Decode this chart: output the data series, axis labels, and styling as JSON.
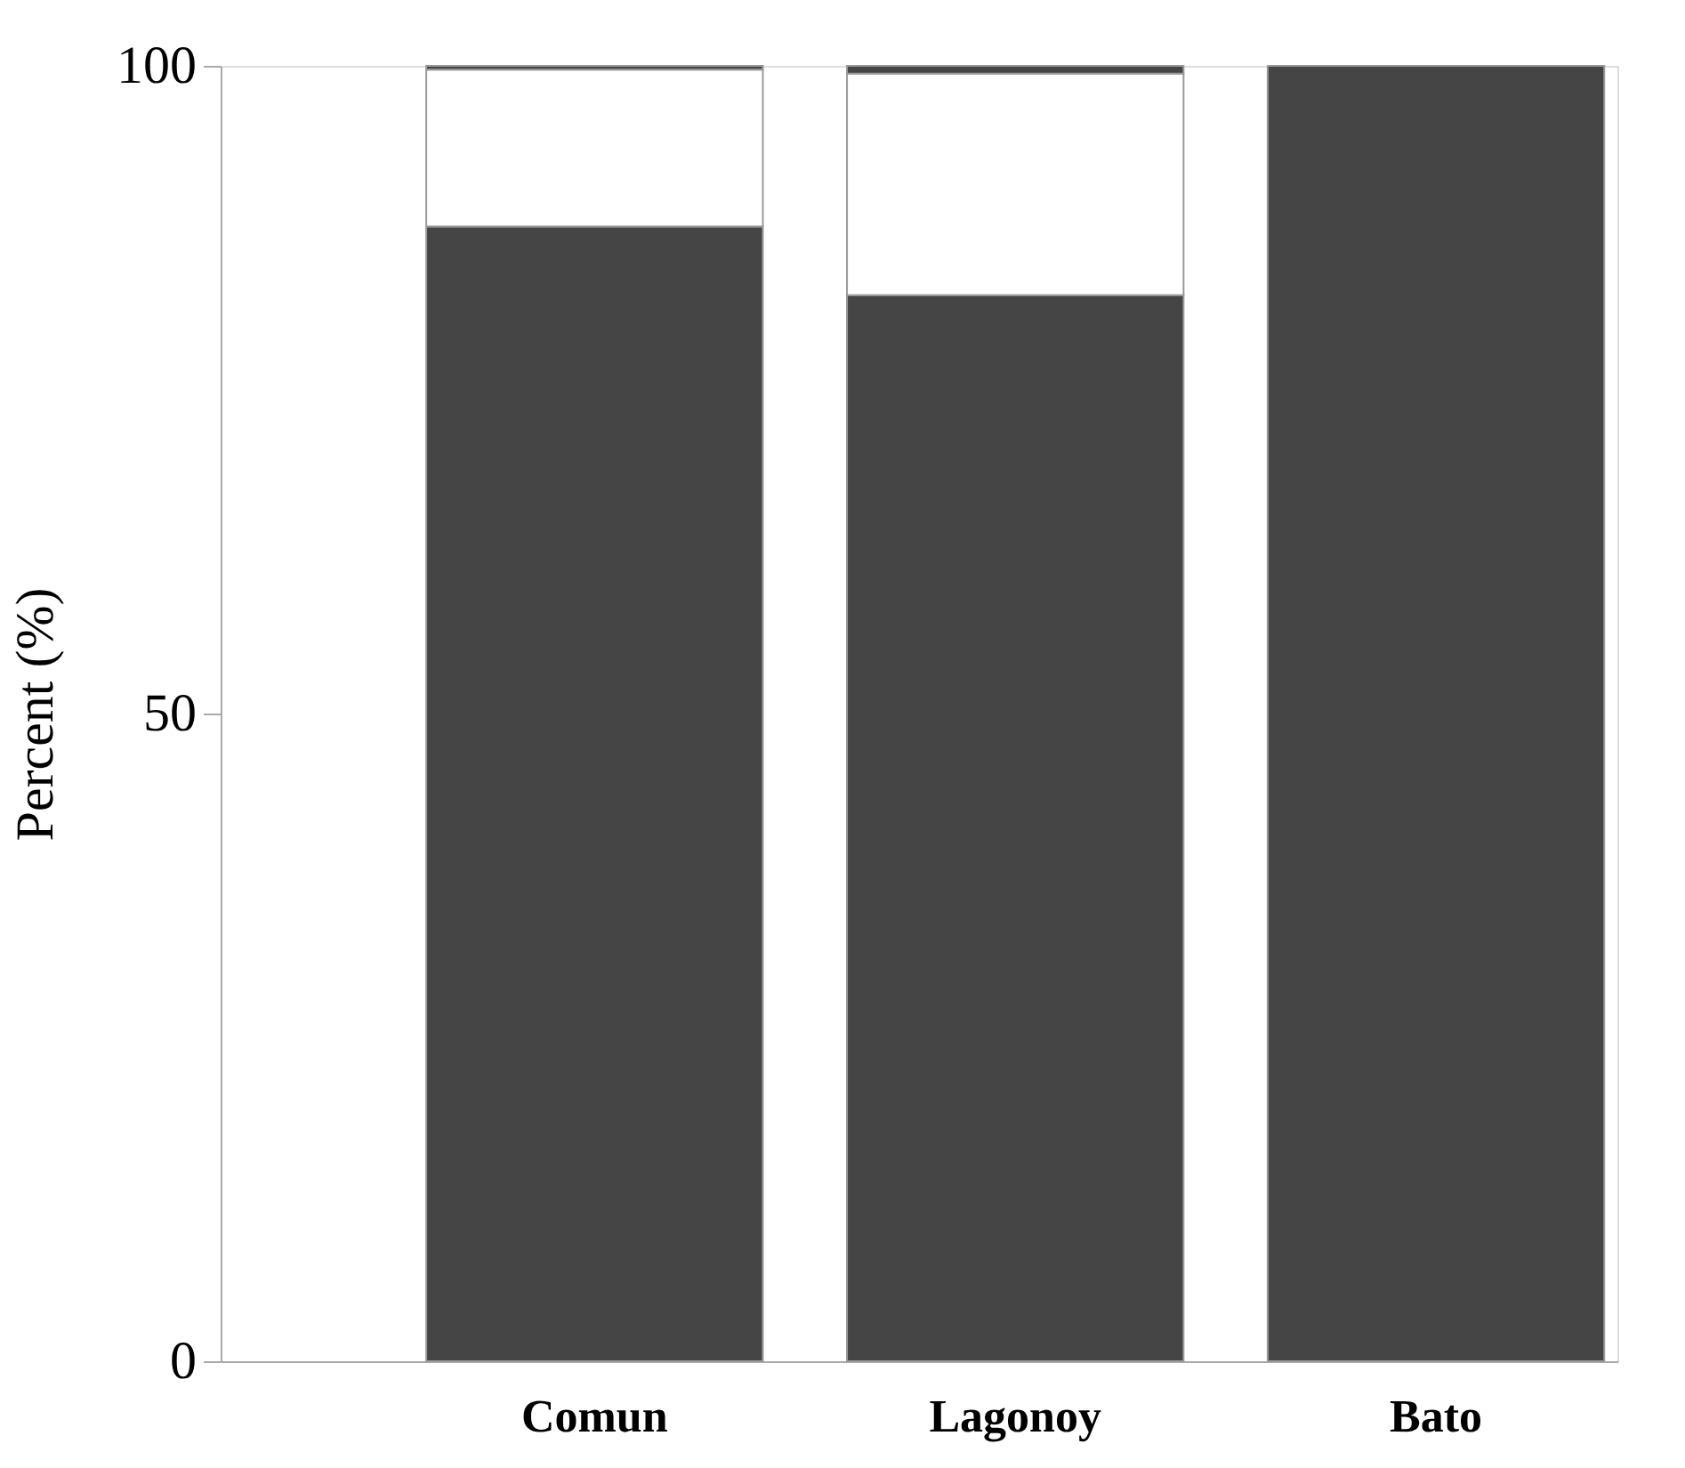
{
  "chart_data": {
    "type": "bar",
    "stacked": true,
    "ylabel": "Percent (%)",
    "categories": [
      "Comun",
      "Lagonoy",
      "Bato"
    ],
    "series": [
      {
        "color": "#454545",
        "values": [
          87.6,
          82.3,
          100
        ]
      },
      {
        "color": "#ffffff",
        "values": [
          12.1,
          17.1,
          0
        ]
      },
      {
        "color": "#454545",
        "values": [
          0.3,
          0.6,
          0
        ]
      }
    ],
    "ylim": [
      0,
      100
    ],
    "yticks": [
      0,
      50,
      100
    ],
    "grid": false,
    "legend": false
  }
}
